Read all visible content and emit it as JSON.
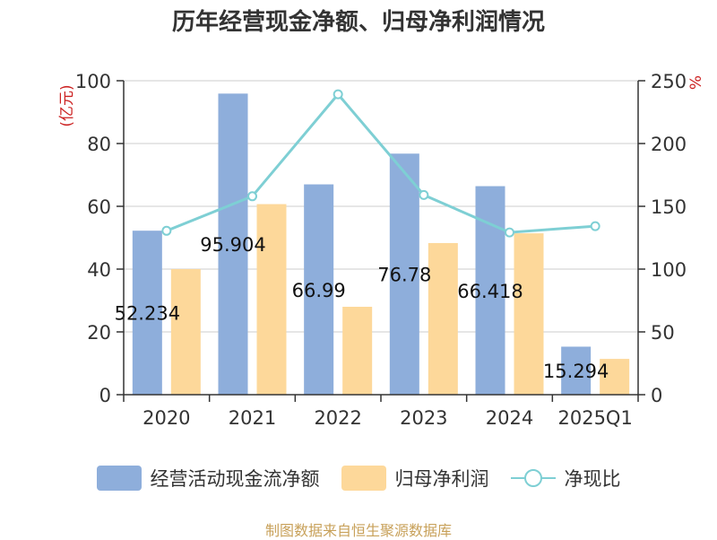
{
  "chart_data": {
    "type": "bar",
    "title": "历年经营现金净额、归母净利润情况",
    "categories": [
      "2020",
      "2021",
      "2022",
      "2023",
      "2024",
      "2025Q1"
    ],
    "series": [
      {
        "name": "经营活动现金流净额",
        "type": "bar",
        "axis": "left",
        "color": "#8eaedb",
        "values": [
          52.234,
          95.904,
          66.99,
          76.78,
          66.418,
          15.294
        ],
        "labels": [
          "52.234",
          "95.904",
          "66.99",
          "76.78",
          "66.418",
          "15.294"
        ]
      },
      {
        "name": "归母净利润",
        "type": "bar",
        "axis": "left",
        "color": "#fdd89a",
        "values": [
          40.0,
          60.7,
          28.0,
          48.3,
          51.4,
          11.4
        ]
      },
      {
        "name": "净现比",
        "type": "line",
        "axis": "right",
        "color": "#7ecfd4",
        "values": [
          130.5,
          158.0,
          239.2,
          159.0,
          129.2,
          134.2
        ]
      }
    ],
    "yleft": {
      "label": "(亿元)",
      "ylim": [
        0,
        100
      ],
      "ticks": [
        0,
        20,
        40,
        60,
        80,
        100
      ]
    },
    "yright": {
      "label": "%",
      "ylim": [
        0,
        250
      ],
      "ticks": [
        0,
        50,
        100,
        150,
        200,
        250
      ]
    },
    "grid": true,
    "legend": "bottom"
  },
  "source": "制图数据来自恒生聚源数据库"
}
